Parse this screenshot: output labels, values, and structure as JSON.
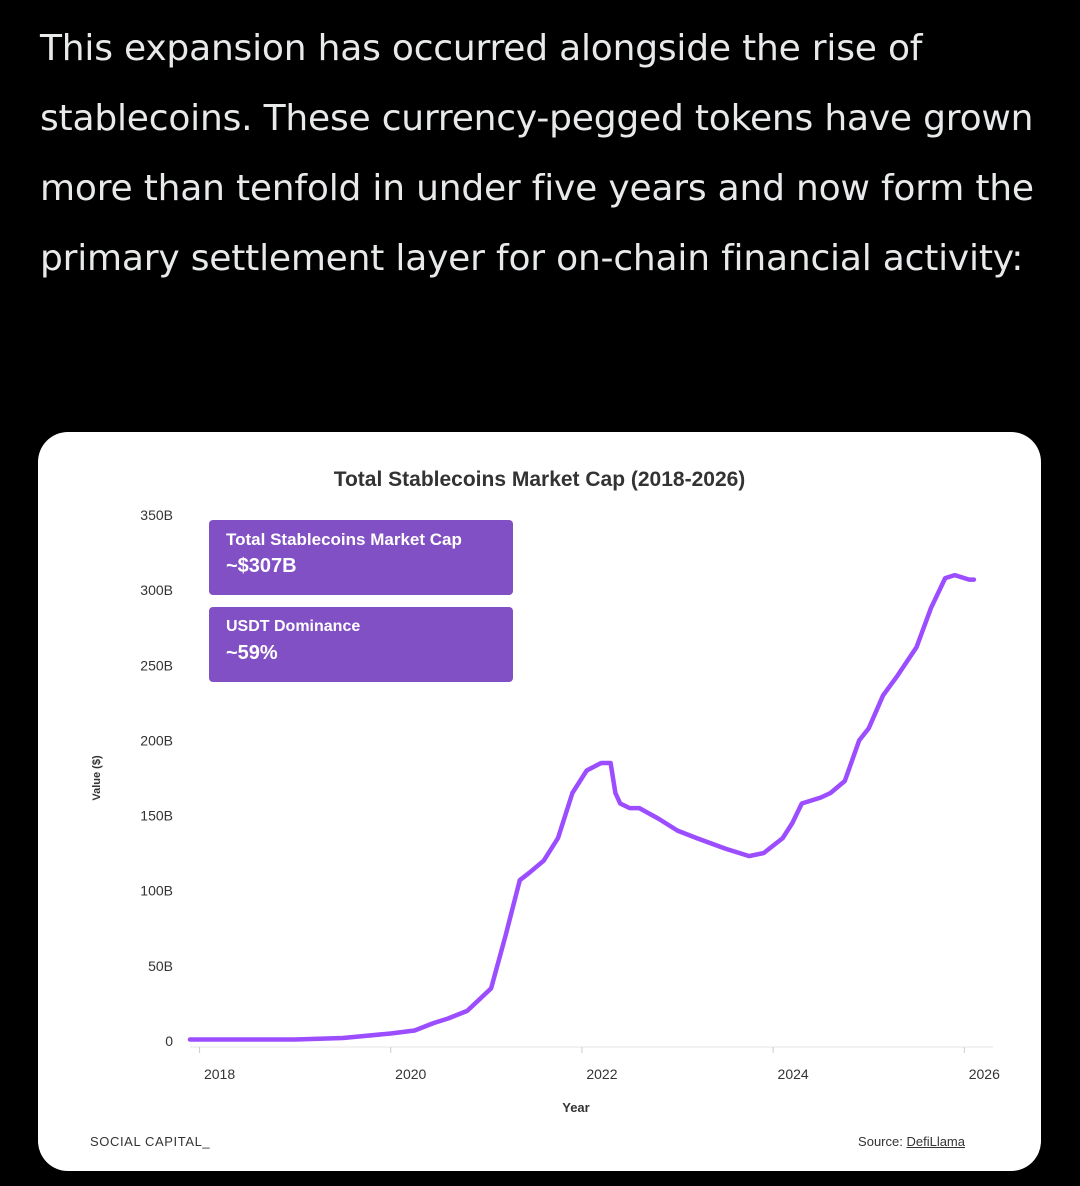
{
  "post": {
    "text": "This expansion has occurred alongside the rise of stablecoins. These currency-pegged tokens have grown more than tenfold in under five years and now form the primary settlement layer for on-chain financial activity:"
  },
  "card": {
    "footer_brand": "SOCIAL CAPITAL_",
    "source_prefix": "Source: ",
    "source_link": "DefiLlama",
    "callouts": [
      {
        "label": "Total Stablecoins Market Cap",
        "value": "~$307B"
      },
      {
        "label": "USDT Dominance",
        "value": "~59%"
      }
    ]
  },
  "chart_data": {
    "type": "line",
    "title": "Total Stablecoins Market Cap (2018-2026)",
    "xlabel": "Year",
    "ylabel": "Value ($)",
    "xlim": [
      2017.9,
      2026.3
    ],
    "ylim": [
      0,
      350
    ],
    "y_unit": "billions USD",
    "x_ticks": [
      2018,
      2020,
      2022,
      2024,
      2026
    ],
    "y_ticks": [
      0,
      50,
      100,
      150,
      200,
      250,
      300,
      350
    ],
    "y_tick_labels": [
      "0",
      "50B",
      "100B",
      "150B",
      "200B",
      "250B",
      "300B",
      "350B"
    ],
    "grid": false,
    "line_color": "#9b4dff",
    "series": [
      {
        "x": [
          2017.9,
          2018.5,
          2019.0,
          2019.5,
          2020.0,
          2020.25,
          2020.45,
          2020.6,
          2020.8,
          2021.05,
          2021.2,
          2021.35,
          2021.45,
          2021.6,
          2021.75,
          2021.9,
          2022.05,
          2022.2,
          2022.3,
          2022.35,
          2022.4,
          2022.5,
          2022.6,
          2022.8,
          2023.0,
          2023.2,
          2023.5,
          2023.75,
          2023.9,
          2024.1,
          2024.2,
          2024.3,
          2024.5,
          2024.6,
          2024.75,
          2024.9,
          2025.0,
          2025.15,
          2025.3,
          2025.5,
          2025.65,
          2025.8,
          2025.9,
          2026.0,
          2026.05,
          2026.1
        ],
        "y": [
          1,
          1,
          1,
          2,
          5,
          7,
          12,
          15,
          20,
          35,
          70,
          107,
          112,
          120,
          135,
          165,
          180,
          185,
          185,
          165,
          158,
          155,
          155,
          148,
          140,
          135,
          128,
          123,
          125,
          135,
          145,
          158,
          162,
          165,
          173,
          200,
          208,
          230,
          243,
          262,
          288,
          308,
          310,
          308,
          307,
          307
        ]
      }
    ]
  }
}
